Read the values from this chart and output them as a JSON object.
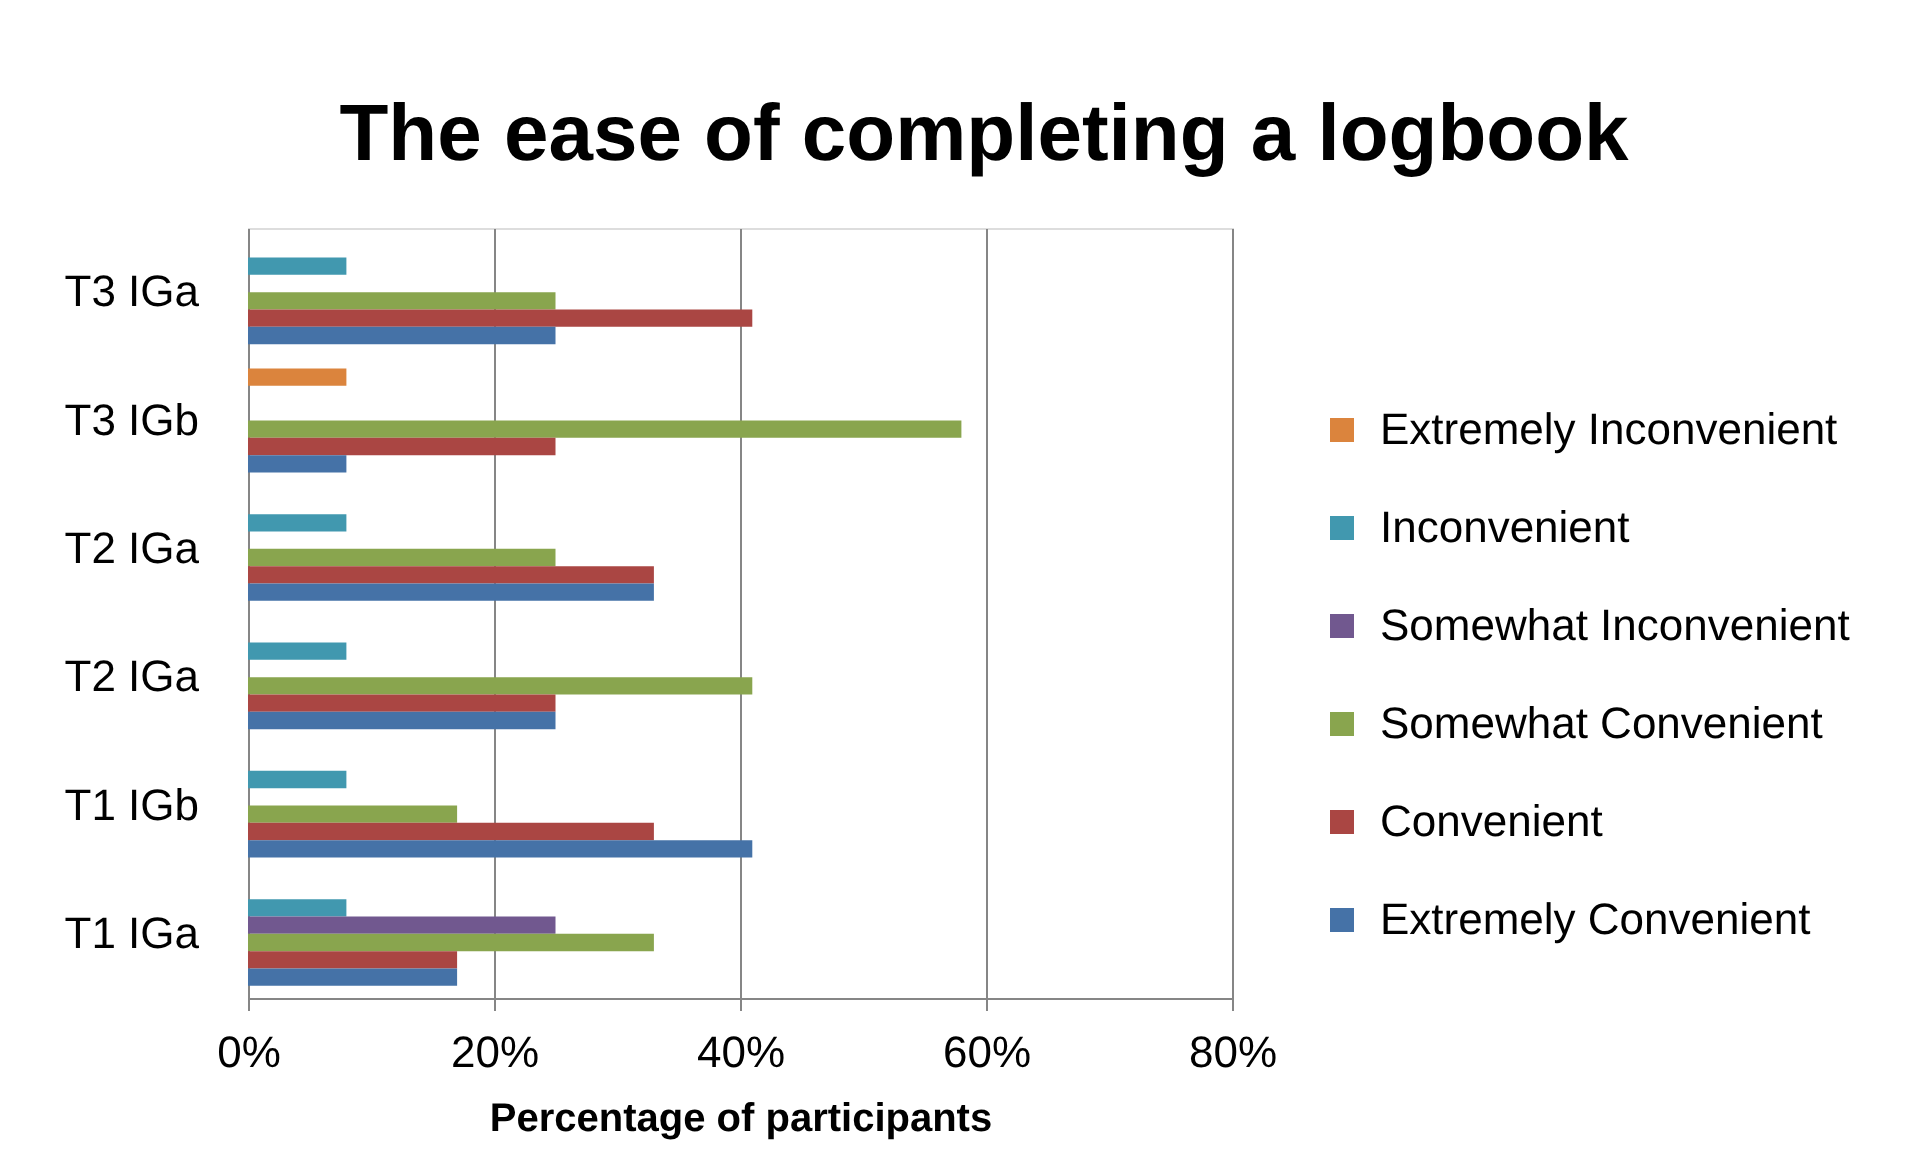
{
  "chart_data": {
    "type": "bar",
    "title": "The ease of completing a logbook",
    "xlabel": "Percentage of participants",
    "orientation": "horizontal",
    "categories": [
      "T3 IGa",
      "T3 IGb",
      "T2 IGa",
      "T2 IGa",
      "T1 IGb",
      "T1 IGa"
    ],
    "series": [
      {
        "name": "Extremely Inconvenient",
        "color": "#db843d",
        "values": [
          null,
          8,
          null,
          null,
          null,
          null
        ]
      },
      {
        "name": "Inconvenient",
        "color": "#4198af",
        "values": [
          8,
          null,
          8,
          8,
          8,
          8
        ]
      },
      {
        "name": "Somewhat Inconvenient",
        "color": "#71588f",
        "values": [
          null,
          null,
          null,
          null,
          null,
          25
        ]
      },
      {
        "name": "Somewhat Convenient",
        "color": "#89a54e",
        "values": [
          25,
          58,
          25,
          41,
          17,
          33
        ]
      },
      {
        "name": "Convenient",
        "color": "#aa4643",
        "values": [
          41,
          25,
          33,
          25,
          33,
          17
        ]
      },
      {
        "name": "Extremely Convenient",
        "color": "#4572a7",
        "values": [
          25,
          8,
          33,
          25,
          41,
          17
        ]
      }
    ],
    "xlim": [
      0,
      80
    ],
    "xticks": [
      {
        "value": 0,
        "label": "0%"
      },
      {
        "value": 20,
        "label": "20%"
      },
      {
        "value": 40,
        "label": "40%"
      },
      {
        "value": 60,
        "label": "60%"
      },
      {
        "value": 80,
        "label": "80%"
      }
    ],
    "grid": "x",
    "legend": "right"
  }
}
